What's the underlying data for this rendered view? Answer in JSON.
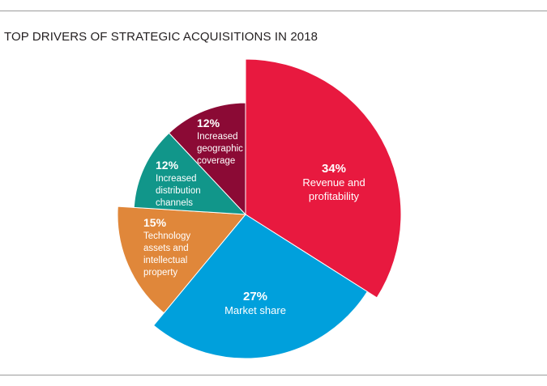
{
  "chart_data": {
    "type": "pie",
    "title": "TOP DRIVERS OF STRATEGIC ACQUISITIONS IN 2018",
    "slices": [
      {
        "label_lines": [
          "Revenue and",
          "profitability"
        ],
        "pct_text": "34%",
        "value": 34,
        "color": "#e8193f"
      },
      {
        "label_lines": [
          "Market share"
        ],
        "pct_text": "27%",
        "value": 27,
        "color": "#00a0dc"
      },
      {
        "label_lines": [
          "Technology",
          "assets and",
          "intellectual",
          "property"
        ],
        "pct_text": "15%",
        "value": 15,
        "color": "#e0873a"
      },
      {
        "label_lines": [
          "Increased",
          "distribution",
          "channels"
        ],
        "pct_text": "12%",
        "value": 12,
        "color": "#11968a"
      },
      {
        "label_lines": [
          "Increased",
          "geographic",
          "coverage"
        ],
        "pct_text": "12%",
        "value": 12,
        "color": "#8b0a35"
      }
    ]
  }
}
